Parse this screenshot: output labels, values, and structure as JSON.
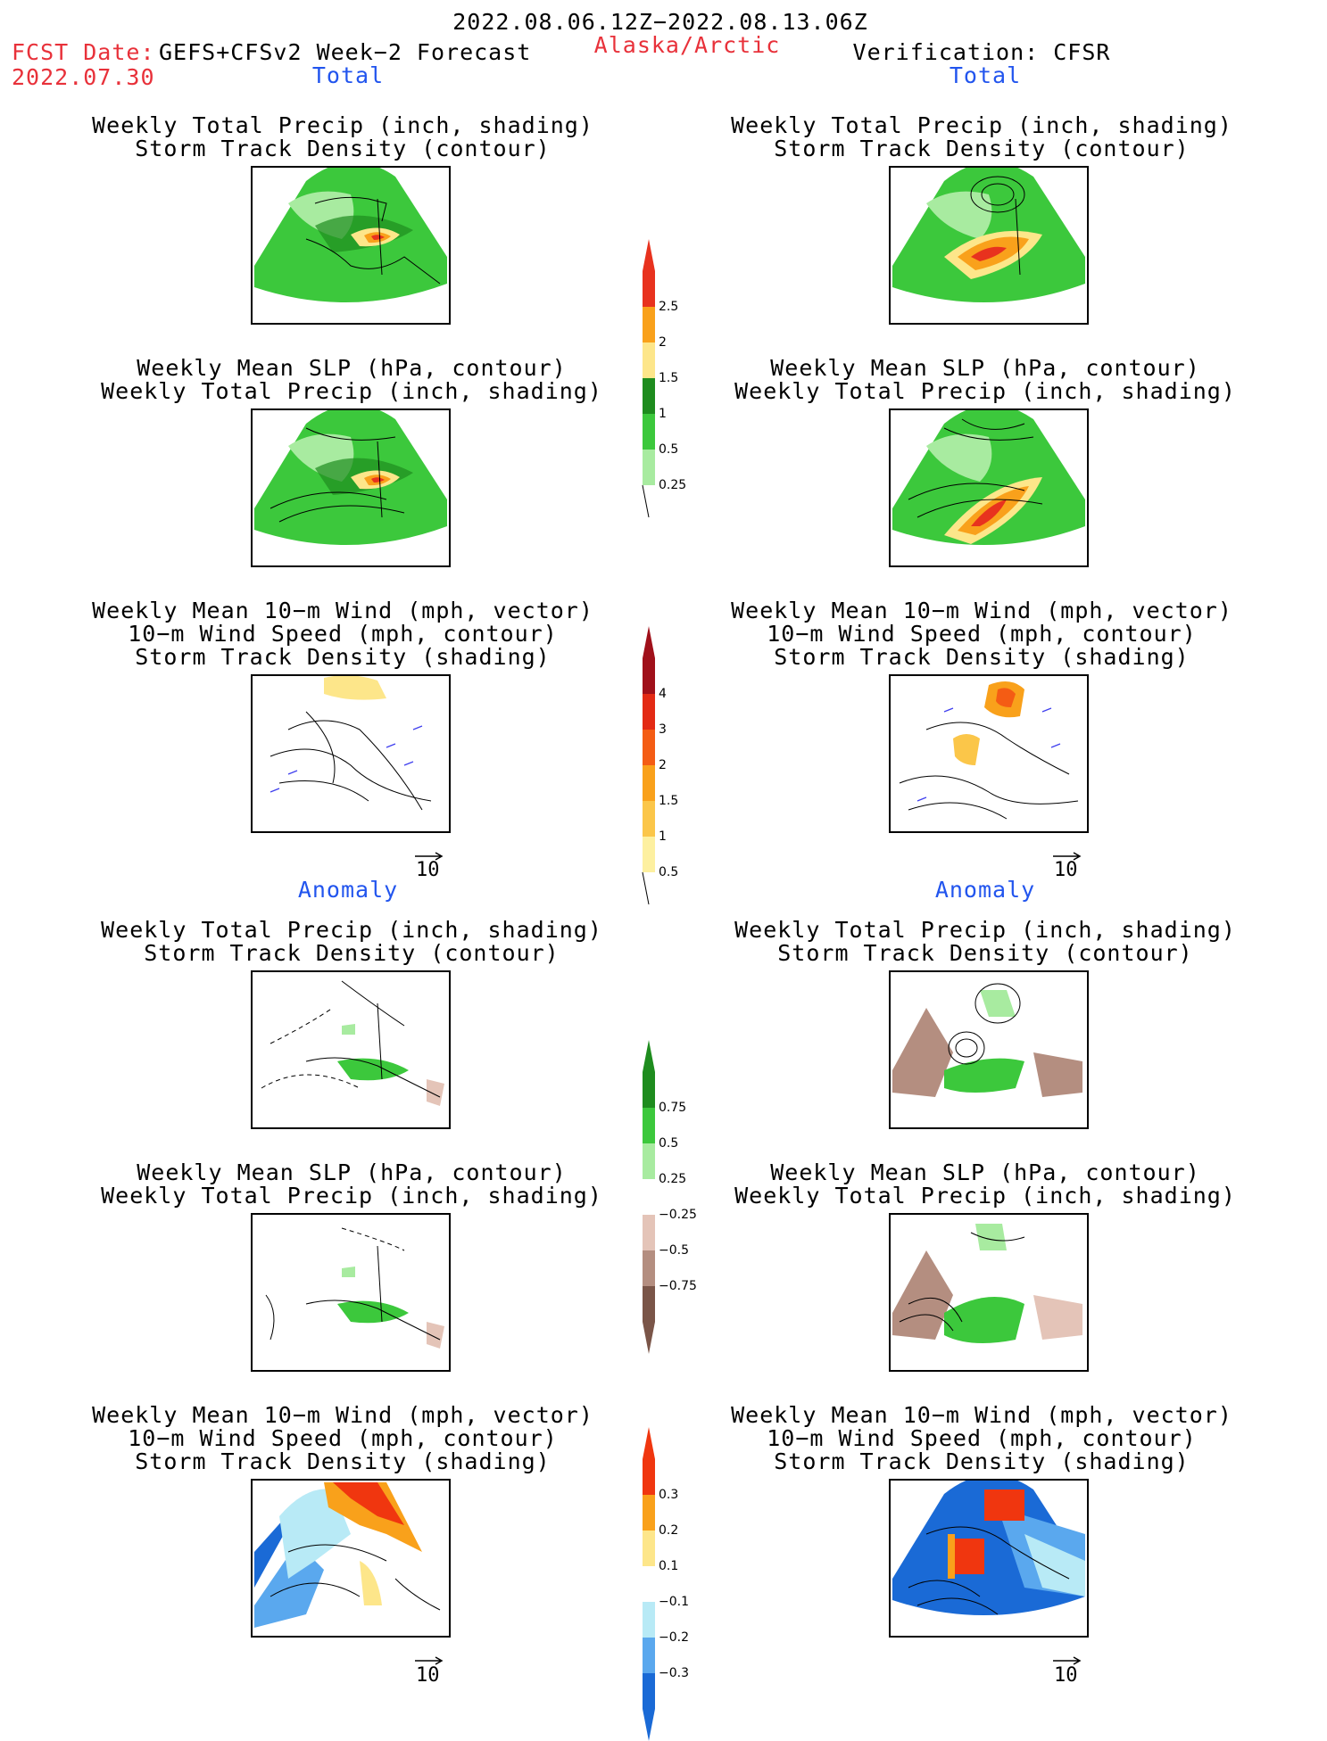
{
  "header": {
    "period": "2022.08.06.12Z−2022.08.13.06Z",
    "fcst_label": "FCST Date:",
    "fcst_date": "2022.07.30",
    "model": "GEFS+CFSv2 Week−2 Forecast",
    "region": "Alaska/Arctic",
    "verification": "Verification: CFSR"
  },
  "sections": {
    "total": "Total",
    "anomaly": "Anomaly"
  },
  "titles": {
    "precip_track": [
      "Weekly Total Precip (inch, shading)",
      "Storm Track Density (contour)"
    ],
    "slp_precip": [
      "Weekly Mean SLP (hPa, contour)",
      "Weekly Total Precip (inch, shading)"
    ],
    "wind_track": [
      "Weekly Mean 10−m Wind (mph, vector)",
      "10−m Wind Speed (mph, contour)",
      "Storm Track Density (shading)"
    ]
  },
  "colorbars": {
    "total_precip": {
      "labels": [
        "2.5",
        "2",
        "1.5",
        "1",
        "0.5",
        "0.25"
      ],
      "colors": [
        "#e8321e",
        "#f9a11b",
        "#fde68a",
        "#1e8c1e",
        "#3cc83c",
        "#a8eba0"
      ]
    },
    "track_density": {
      "labels": [
        "4",
        "3",
        "2",
        "1.5",
        "1",
        "0.5"
      ],
      "colors": [
        "#a0101a",
        "#e32a14",
        "#f45c14",
        "#f9a11b",
        "#fbc649",
        "#fdf0a0"
      ]
    },
    "precip_anomaly": {
      "labels": [
        "0.75",
        "0.5",
        "0.25",
        "−0.25",
        "−0.5",
        "−0.75"
      ],
      "colors": [
        "#1e8c1e",
        "#3cc83c",
        "#a8eba0",
        "#ffffff",
        "#e4c4b8",
        "#b48e80",
        "#7a5548"
      ]
    },
    "track_anomaly": {
      "labels": [
        "0.3",
        "0.2",
        "0.1",
        "−0.1",
        "−0.2",
        "−0.3"
      ],
      "colors": [
        "#f0360f",
        "#f9a11b",
        "#fde68a",
        "#ffffff",
        "#b8eaf6",
        "#5aa8ee",
        "#1a6ad6"
      ]
    }
  },
  "reference_vector": {
    "magnitude": "10"
  }
}
